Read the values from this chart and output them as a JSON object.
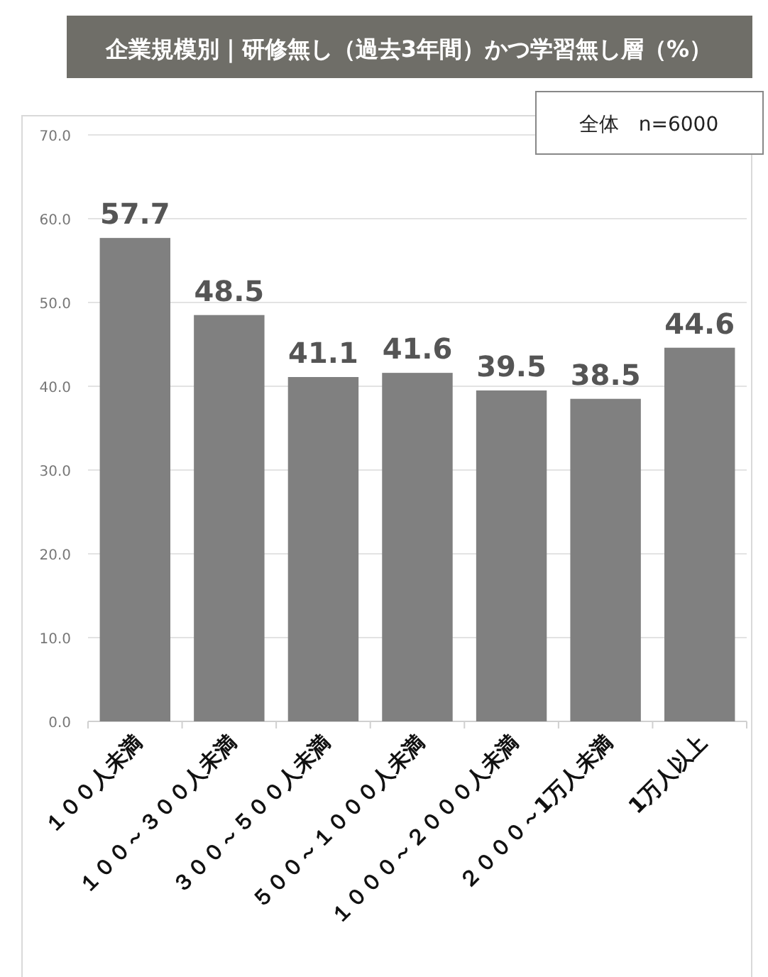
{
  "chart_data": {
    "type": "bar",
    "title": "企業規模別｜研修無し（過去3年間）かつ学習無し層（%）",
    "categories": [
      "１００人未満",
      "１００～３００人未満",
      "３００～５００人未満",
      "５００～１０００人未満",
      "１０００～２０００人未満",
      "２０００～1万人未満",
      "1万人以上"
    ],
    "values": [
      57.7,
      48.5,
      41.1,
      41.6,
      39.5,
      38.5,
      44.6
    ],
    "color": "#808080",
    "ylim": [
      0,
      70
    ],
    "yticks": [
      {
        "value": 0,
        "label": "0.0"
      },
      {
        "value": 10,
        "label": "10.0"
      },
      {
        "value": 20,
        "label": "20.0"
      },
      {
        "value": 30,
        "label": "30.0"
      },
      {
        "value": 40,
        "label": "40.0"
      },
      {
        "value": 50,
        "label": "50.0"
      },
      {
        "value": 60,
        "label": "60.0"
      },
      {
        "value": 70,
        "label": "70.0"
      }
    ],
    "grid": "y",
    "data_labels": true,
    "annotations": [
      "全体　n=6000"
    ]
  }
}
